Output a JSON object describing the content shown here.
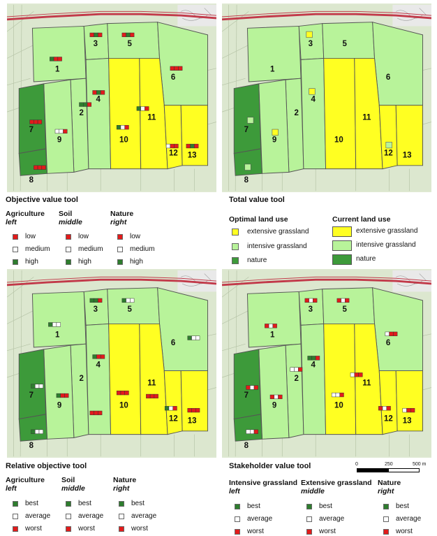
{
  "colors": {
    "extensive": "#ffff22",
    "intensive": "#b8f39a",
    "nature": "#3d9a3a",
    "low_worst": "#e21b1b",
    "medium_average": "#ffffff",
    "high_best": "#2e7d2e",
    "road": "#c23a4a"
  },
  "plot_labels": [
    "1",
    "2",
    "3",
    "4",
    "5",
    "6",
    "7",
    "8",
    "9",
    "10",
    "11",
    "12",
    "13"
  ],
  "panels": {
    "top_left": {
      "title": "Objective value tool",
      "groups": [
        {
          "heading": "Agriculture",
          "sub": "left",
          "items": [
            "low",
            "medium",
            "high"
          ]
        },
        {
          "heading": "Soil",
          "sub": "middle",
          "items": [
            "low",
            "medium",
            "high"
          ]
        },
        {
          "heading": "Nature",
          "sub": "right",
          "items": [
            "low",
            "medium",
            "high"
          ]
        }
      ]
    },
    "top_right": {
      "title": "Total value tool",
      "optimal_heading": "Optimal land use",
      "current_heading": "Current land use",
      "optimal_items": [
        "extensive grassland",
        "intensive grassland",
        "nature"
      ],
      "current_items": [
        "extensive grassland",
        "intensive grassland",
        "nature"
      ]
    },
    "bottom_left": {
      "title": "Relative objective tool",
      "groups": [
        {
          "heading": "Agriculture",
          "sub": "left",
          "items": [
            "best",
            "average",
            "worst"
          ]
        },
        {
          "heading": "Soil",
          "sub": "middle",
          "items": [
            "best",
            "average",
            "worst"
          ]
        },
        {
          "heading": "Nature",
          "sub": "right",
          "items": [
            "best",
            "average",
            "worst"
          ]
        }
      ]
    },
    "bottom_right": {
      "title": "Stakeholder value tool",
      "scale": {
        "labels": [
          "0",
          "250",
          "500 m"
        ]
      },
      "groups": [
        {
          "heading": "Intensive grassland",
          "sub": "left",
          "items": [
            "best",
            "average",
            "worst"
          ]
        },
        {
          "heading": "Extensive grassland",
          "sub": "middle",
          "items": [
            "best",
            "average",
            "worst"
          ]
        },
        {
          "heading": "Nature",
          "sub": "right",
          "items": [
            "best",
            "average",
            "worst"
          ]
        }
      ]
    }
  }
}
